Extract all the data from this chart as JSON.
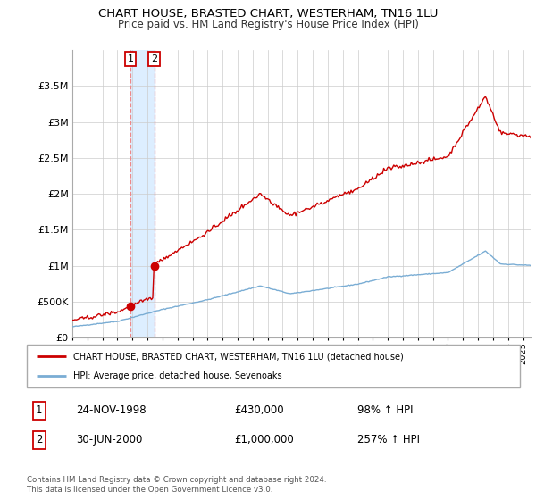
{
  "title": "CHART HOUSE, BRASTED CHART, WESTERHAM, TN16 1LU",
  "subtitle": "Price paid vs. HM Land Registry's House Price Index (HPI)",
  "legend_line1": "CHART HOUSE, BRASTED CHART, WESTERHAM, TN16 1LU (detached house)",
  "legend_line2": "HPI: Average price, detached house, Sevenoaks",
  "footnote": "Contains HM Land Registry data © Crown copyright and database right 2024.\nThis data is licensed under the Open Government Licence v3.0.",
  "transaction1_date": "24-NOV-1998",
  "transaction1_price": "£430,000",
  "transaction1_hpi": "98% ↑ HPI",
  "transaction2_date": "30-JUN-2000",
  "transaction2_price": "£1,000,000",
  "transaction2_hpi": "257% ↑ HPI",
  "hpi_color": "#7aadd4",
  "property_color": "#cc0000",
  "highlight_color": "#ddeeff",
  "ylim": [
    0,
    4000000
  ],
  "yticks": [
    0,
    500000,
    1000000,
    1500000,
    2000000,
    2500000,
    3000000,
    3500000
  ],
  "ytick_labels": [
    "£0",
    "£500K",
    "£1M",
    "£1.5M",
    "£2M",
    "£2.5M",
    "£3M",
    "£3.5M"
  ],
  "xstart": 1995.0,
  "xend": 2025.5,
  "t1": 1998.875,
  "t2": 2000.458,
  "price1": 430000,
  "price2": 1000000
}
